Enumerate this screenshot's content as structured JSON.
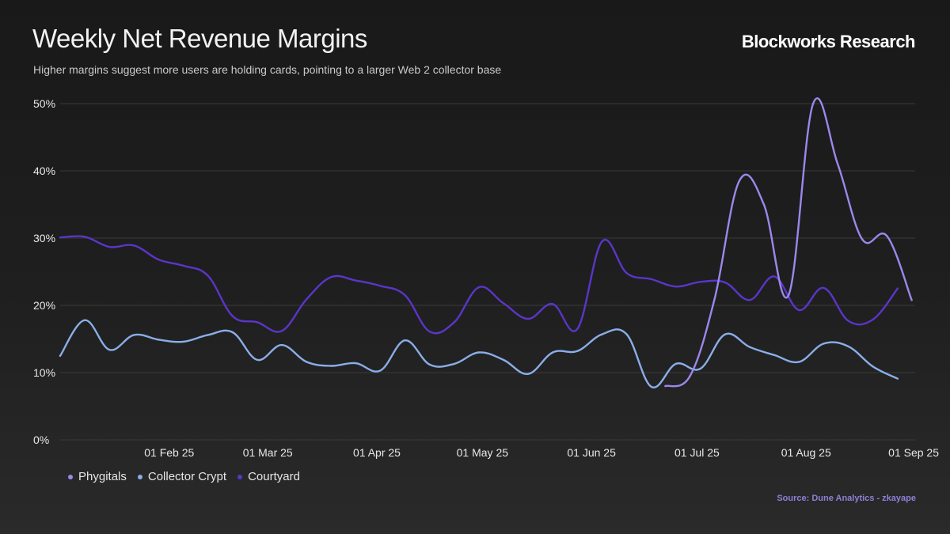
{
  "title": "Weekly Net Revenue Margins",
  "subtitle": "Higher margins suggest more users are holding cards, pointing to a larger Web 2 collector base",
  "brand": "Blockworks Research",
  "source": "Source: Dune Analytics - zkayape",
  "colors": {
    "phygitals": "#9d87ec",
    "collector_crypt": "#8aaee8",
    "courtyard": "#5b35c9",
    "grid": "#3a3a3a",
    "axis_text": "#e8e8e8"
  },
  "chart_data": {
    "type": "line",
    "title": "Weekly Net Revenue Margins",
    "xlabel": "",
    "ylabel": "",
    "ylim": [
      0,
      50
    ],
    "y_ticks": [
      0,
      10,
      20,
      30,
      40,
      50
    ],
    "y_tick_labels": [
      "0%",
      "10%",
      "20%",
      "30%",
      "40%",
      "50%"
    ],
    "x_range_days": [
      0,
      243
    ],
    "x_ticks": [
      {
        "day": 31,
        "label": "01 Feb 25"
      },
      {
        "day": 59,
        "label": "01 Mar 25"
      },
      {
        "day": 90,
        "label": "01 Apr 25"
      },
      {
        "day": 120,
        "label": "01 May 25"
      },
      {
        "day": 151,
        "label": "01 Jun 25"
      },
      {
        "day": 181,
        "label": "01 Jul 25"
      },
      {
        "day": 212,
        "label": "01 Aug 25"
      },
      {
        "day": 243,
        "label": "01 Sep 25"
      }
    ],
    "x_note": "x values are days since 01 Jan 25",
    "grid": true,
    "legend_position": "bottom-left",
    "series": [
      {
        "name": "Phygitals",
        "color": "#9d87ec",
        "x": [
          172,
          179,
          186,
          193,
          200,
          207,
          214,
          221,
          228,
          235,
          242
        ],
        "values": [
          8.0,
          9.5,
          21.0,
          38.5,
          35.0,
          21.5,
          50.0,
          41.0,
          29.8,
          30.3,
          20.8
        ]
      },
      {
        "name": "Collector Crypt",
        "color": "#8aaee8",
        "x": [
          0,
          7,
          14,
          21,
          28,
          35,
          42,
          49,
          56,
          63,
          70,
          77,
          84,
          91,
          98,
          105,
          112,
          119,
          126,
          133,
          140,
          147,
          154,
          161,
          168,
          175,
          182,
          189,
          196,
          203,
          210,
          217,
          224,
          231,
          238
        ],
        "values": [
          12.5,
          17.8,
          13.4,
          15.6,
          14.9,
          14.6,
          15.6,
          16.0,
          11.9,
          14.1,
          11.6,
          11.0,
          11.4,
          10.3,
          14.8,
          11.2,
          11.3,
          13.0,
          11.9,
          9.8,
          13.0,
          13.2,
          15.7,
          15.7,
          7.9,
          11.3,
          10.6,
          15.7,
          13.8,
          12.6,
          11.6,
          14.3,
          13.9,
          10.9,
          9.1
        ]
      },
      {
        "name": "Courtyard",
        "color": "#5b35c9",
        "x": [
          0,
          7,
          14,
          21,
          28,
          35,
          42,
          49,
          56,
          63,
          70,
          77,
          84,
          91,
          98,
          105,
          112,
          119,
          126,
          133,
          140,
          147,
          154,
          161,
          168,
          175,
          182,
          189,
          196,
          203,
          210,
          217,
          224,
          231,
          238
        ],
        "values": [
          30.1,
          30.2,
          28.7,
          28.9,
          26.8,
          25.9,
          24.4,
          18.4,
          17.5,
          16.2,
          20.9,
          24.2,
          23.7,
          22.9,
          21.5,
          16.1,
          17.5,
          22.7,
          20.3,
          18.0,
          20.2,
          16.5,
          29.5,
          24.8,
          23.9,
          22.8,
          23.5,
          23.4,
          20.8,
          24.3,
          19.3,
          22.6,
          17.7,
          17.9,
          22.5
        ]
      }
    ]
  }
}
